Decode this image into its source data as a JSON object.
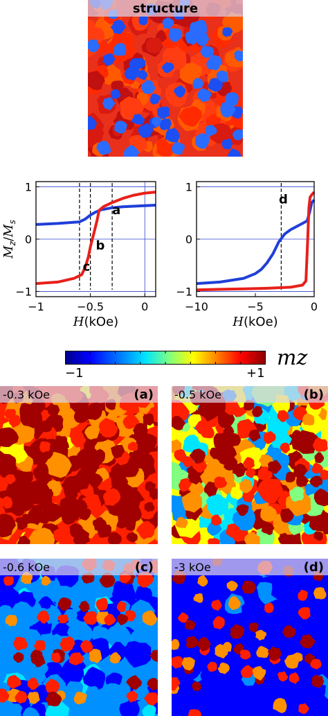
{
  "structure_panel": {
    "title": "structure"
  },
  "chart_data": [
    {
      "type": "line",
      "ylabel": "Mz/Ms",
      "xlabel": "H(kOe)",
      "xlim": [
        -1,
        0.1
      ],
      "ylim": [
        -1.1,
        1.1
      ],
      "xticks": [
        "−1",
        "−0.5",
        "0"
      ],
      "yticks": [
        "−1",
        "0",
        "1"
      ],
      "series": [
        {
          "color": "#1f3fd8",
          "x": [
            -1.0,
            -0.8,
            -0.6,
            -0.55,
            -0.5,
            -0.45,
            -0.4,
            -0.3,
            -0.2,
            -0.1,
            0.0,
            0.1
          ],
          "y": [
            0.28,
            0.3,
            0.33,
            0.38,
            0.46,
            0.52,
            0.56,
            0.6,
            0.62,
            0.63,
            0.64,
            0.65
          ]
        },
        {
          "color": "#e8201a",
          "x": [
            -1.0,
            -0.8,
            -0.65,
            -0.58,
            -0.55,
            -0.52,
            -0.5,
            -0.47,
            -0.44,
            -0.42,
            -0.38,
            -0.3,
            -0.2,
            -0.1,
            0.0,
            0.1
          ],
          "y": [
            -0.85,
            -0.82,
            -0.75,
            -0.68,
            -0.55,
            -0.35,
            -0.15,
            0.1,
            0.35,
            0.55,
            0.62,
            0.7,
            0.78,
            0.84,
            0.88,
            0.9
          ]
        }
      ],
      "markers": [
        {
          "label": "a",
          "x": -0.3,
          "y": 0.48
        },
        {
          "label": "b",
          "x": -0.45,
          "y": -0.2
        },
        {
          "label": "c",
          "x": -0.57,
          "y": -0.6
        }
      ],
      "vlines": [
        -0.6,
        -0.5,
        -0.3
      ]
    },
    {
      "type": "line",
      "xlabel": "H(kOe)",
      "xlim": [
        -10,
        0
      ],
      "ylim": [
        -1.1,
        1.1
      ],
      "xticks": [
        "−10",
        "−5",
        "0"
      ],
      "yticks": [
        "−1",
        "0",
        "1"
      ],
      "series": [
        {
          "color": "#1f3fd8",
          "x": [
            -10,
            -8,
            -6,
            -5,
            -4.5,
            -4,
            -3.5,
            -3,
            -2.5,
            -2,
            -1.5,
            -1,
            -0.6,
            -0.4,
            -0.2,
            0
          ],
          "y": [
            -0.85,
            -0.82,
            -0.75,
            -0.66,
            -0.58,
            -0.45,
            -0.28,
            -0.05,
            0.1,
            0.18,
            0.24,
            0.3,
            0.35,
            0.5,
            0.7,
            0.75
          ]
        },
        {
          "color": "#e8201a",
          "x": [
            -10,
            -8,
            -6,
            -4,
            -2,
            -1,
            -0.7,
            -0.55,
            -0.45,
            -0.35,
            -0.2,
            0
          ],
          "y": [
            -0.97,
            -0.96,
            -0.95,
            -0.94,
            -0.92,
            -0.88,
            -0.8,
            0.0,
            0.6,
            0.8,
            0.85,
            0.9
          ]
        }
      ],
      "markers": [
        {
          "label": "d",
          "x": -3.0,
          "y": 0.68
        }
      ],
      "vlines": [
        -2.8
      ]
    }
  ],
  "colorbar": {
    "min_label": "−1",
    "max_label": "+1",
    "symbol": "mz"
  },
  "snapshots": [
    {
      "field": "-0.3 kOe",
      "label": "(a)"
    },
    {
      "field": "-0.5 kOe",
      "label": "(b)"
    },
    {
      "field": "-0.6 kOe",
      "label": "(c)"
    },
    {
      "field": "-3 kOe",
      "label": "(d)"
    }
  ]
}
